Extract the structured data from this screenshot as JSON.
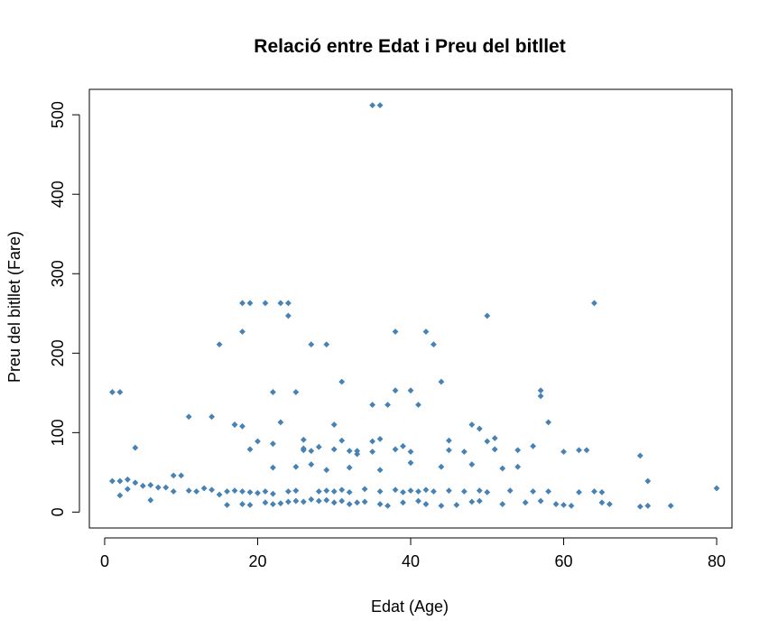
{
  "chart_data": {
    "type": "scatter",
    "title": "Relació entre Edat i Preu del bitllet",
    "xlabel": "Edat (Age)",
    "ylabel": "Preu del bitllet (Fare)",
    "xlim": [
      -2,
      82
    ],
    "ylim": [
      -20,
      532
    ],
    "x_ticks": [
      0,
      20,
      40,
      60,
      80
    ],
    "y_ticks": [
      0,
      100,
      200,
      300,
      400,
      500
    ],
    "grid": false,
    "legend": "none",
    "point_color": "#4682B4",
    "point_shape": "diamond",
    "series": [
      {
        "x": [
          35,
          36,
          1,
          2,
          64,
          18,
          19,
          21,
          23,
          24,
          18,
          24,
          38,
          42,
          50,
          15,
          27,
          29,
          43,
          31,
          44,
          17,
          18,
          25,
          35,
          37,
          22,
          23,
          38,
          40,
          41,
          57,
          57,
          58,
          11,
          14,
          4,
          17,
          20,
          30,
          35,
          28,
          31,
          36,
          39,
          45,
          26,
          33,
          48,
          49,
          50,
          51,
          19,
          26,
          27,
          32,
          38,
          22,
          26,
          30,
          33,
          35,
          40,
          45,
          47,
          51,
          54,
          56,
          60,
          62,
          63,
          70,
          1,
          2,
          3,
          4,
          5,
          6,
          7,
          8,
          9,
          10,
          11,
          14,
          16,
          18,
          19,
          21,
          22,
          23,
          24,
          25,
          26,
          27,
          28,
          29,
          30,
          31,
          32,
          33,
          34,
          36,
          37,
          39,
          41,
          42,
          44,
          46,
          48,
          49,
          52,
          55,
          57,
          59,
          60,
          61,
          65,
          66,
          70,
          71,
          74,
          80,
          3,
          12,
          13,
          15,
          16,
          17,
          18,
          19,
          20,
          21,
          22,
          24,
          25,
          28,
          29,
          30,
          31,
          32,
          34,
          36,
          38,
          39,
          40,
          41,
          42,
          43,
          45,
          47,
          49,
          50,
          53,
          56,
          58,
          62,
          64,
          65,
          71,
          2,
          6,
          9,
          22,
          25,
          27,
          29,
          32,
          36,
          40,
          44,
          48,
          52,
          54
        ],
        "y": [
          512,
          512,
          151,
          151,
          263,
          263,
          263,
          263,
          263,
          263,
          227,
          247,
          227,
          227,
          247,
          211,
          211,
          211,
          211,
          164,
          164,
          110,
          108,
          151,
          135,
          135,
          151,
          113,
          153,
          153,
          135,
          146,
          153,
          113,
          120,
          120,
          81,
          110,
          89,
          110,
          89,
          82,
          90,
          92,
          83,
          90,
          91,
          77,
          110,
          105,
          89,
          93,
          79,
          80,
          77,
          77,
          79,
          86,
          78,
          79,
          73,
          76,
          76,
          78,
          76,
          79,
          78,
          83,
          76,
          78,
          78,
          71,
          39,
          39,
          41,
          37,
          33,
          34,
          31,
          31,
          46,
          46,
          27,
          28,
          9,
          10,
          9,
          12,
          10,
          11,
          13,
          14,
          13,
          16,
          14,
          15,
          12,
          14,
          10,
          12,
          13,
          10,
          8,
          12,
          14,
          10,
          8,
          9,
          13,
          14,
          10,
          12,
          14,
          10,
          9,
          8,
          12,
          10,
          7,
          8,
          8,
          30,
          29,
          26,
          30,
          22,
          26,
          27,
          26,
          25,
          24,
          26,
          23,
          26,
          27,
          26,
          27,
          26,
          28,
          25,
          29,
          26,
          28,
          25,
          27,
          26,
          28,
          26,
          27,
          26,
          27,
          25,
          27,
          26,
          26,
          25,
          26,
          25,
          39,
          21,
          15,
          26,
          56,
          57,
          60,
          53,
          56,
          53,
          62,
          57,
          60,
          55,
          57
        ]
      }
    ]
  }
}
